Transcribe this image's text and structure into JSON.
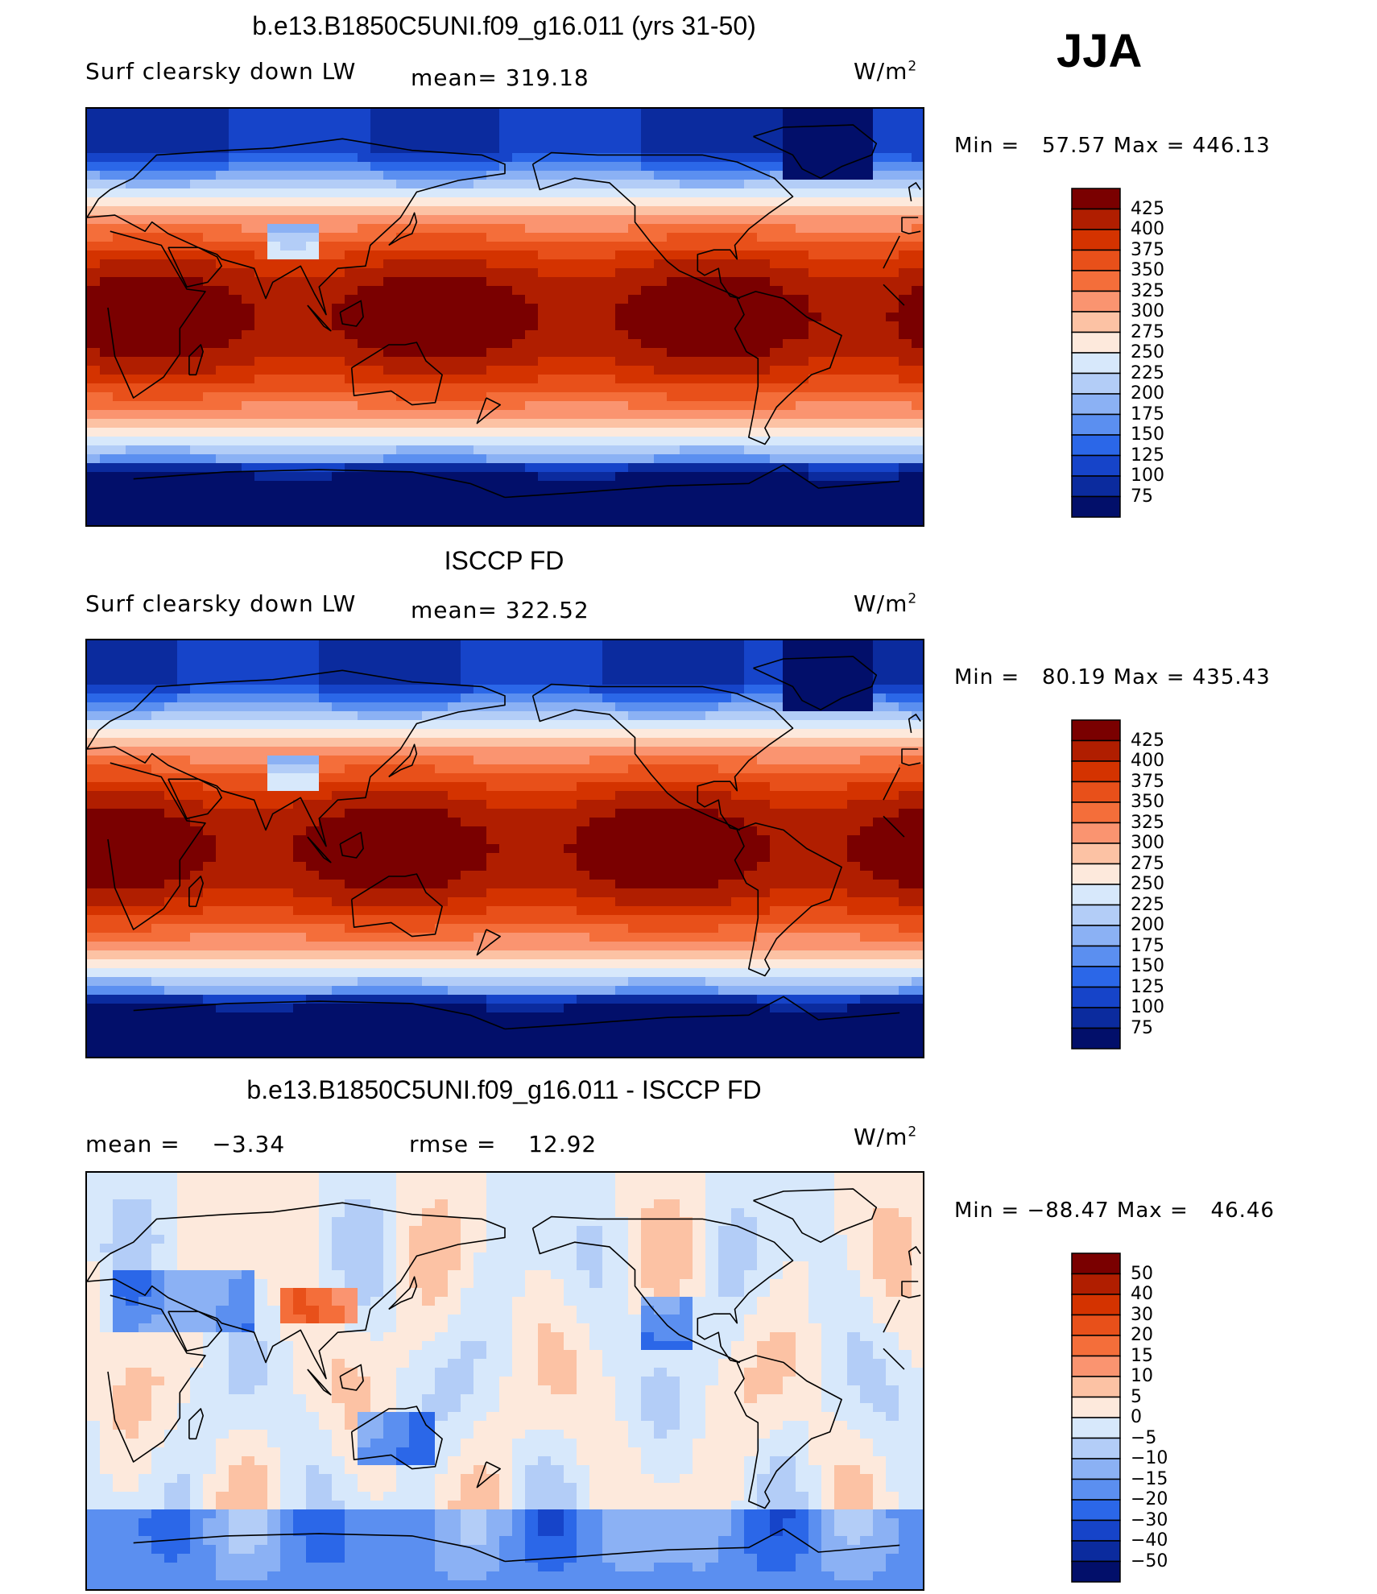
{
  "season": "JJA",
  "panels": [
    {
      "title": "b.e13.B1850C5UNI.f09_g16.011 (yrs 31-50)",
      "left_label": "Surf clearsky down LW",
      "mid_label": "mean= 319.18",
      "units_label": "W/m",
      "units_sup": "2",
      "minmax": "Min =   57.57 Max = 446.13",
      "kind": "field",
      "colorbar": {
        "labels": [
          "425",
          "400",
          "375",
          "350",
          "325",
          "300",
          "275",
          "250",
          "225",
          "200",
          "175",
          "150",
          "125",
          "100",
          "75"
        ],
        "colors": [
          "#7a0000",
          "#b01e00",
          "#d43300",
          "#e8501a",
          "#f46e3a",
          "#fa9470",
          "#fcc2a4",
          "#fde9dc",
          "#d7e8fb",
          "#b3cdf7",
          "#8bb1f4",
          "#5b8ff0",
          "#2b67e8",
          "#1644c9",
          "#0b2b9e",
          "#020f6a"
        ]
      }
    },
    {
      "title": "ISCCP FD",
      "left_label": "Surf clearsky down LW",
      "mid_label": "mean= 322.52",
      "units_label": "W/m",
      "units_sup": "2",
      "minmax": "Min =   80.19 Max = 435.43",
      "kind": "field",
      "colorbar": {
        "labels": [
          "425",
          "400",
          "375",
          "350",
          "325",
          "300",
          "275",
          "250",
          "225",
          "200",
          "175",
          "150",
          "125",
          "100",
          "75"
        ],
        "colors": [
          "#7a0000",
          "#b01e00",
          "#d43300",
          "#e8501a",
          "#f46e3a",
          "#fa9470",
          "#fcc2a4",
          "#fde9dc",
          "#d7e8fb",
          "#b3cdf7",
          "#8bb1f4",
          "#5b8ff0",
          "#2b67e8",
          "#1644c9",
          "#0b2b9e",
          "#020f6a"
        ]
      }
    },
    {
      "title": "b.e13.B1850C5UNI.f09_g16.011 - ISCCP FD",
      "left_label": "mean =    −3.34",
      "mid_label": "rmse =    12.92",
      "units_label": "W/m",
      "units_sup": "2",
      "minmax": "Min = −88.47 Max =   46.46",
      "kind": "diff",
      "colorbar": {
        "labels": [
          "50",
          "40",
          "30",
          "20",
          "15",
          "10",
          "5",
          "0",
          "−5",
          "−10",
          "−15",
          "−20",
          "−30",
          "−40",
          "−50"
        ],
        "colors": [
          "#7a0000",
          "#b01e00",
          "#d43300",
          "#e8501a",
          "#f46e3a",
          "#fa9470",
          "#fcc2a4",
          "#fde9dc",
          "#d7e8fb",
          "#b3cdf7",
          "#8bb1f4",
          "#5b8ff0",
          "#2b67e8",
          "#1644c9",
          "#0b2b9e",
          "#020f6a"
        ]
      }
    }
  ]
}
